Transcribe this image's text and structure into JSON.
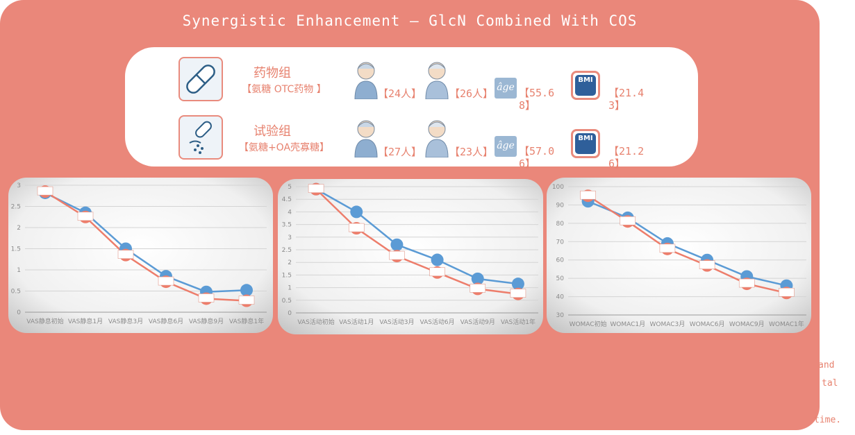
{
  "title": "Synergistic Enhancement – GlcN Combined With COS",
  "groups": [
    {
      "name": "药物组",
      "desc": "【氨糖 OTC药物 】",
      "male": "【24人】",
      "female": "【26人】",
      "age_icon": "âge",
      "age": "【55.68】",
      "bmi_icon": "BMI",
      "bmi": "【21.43】"
    },
    {
      "name": "试验组",
      "desc": "【氨糖+OA壳寡糖】",
      "male": "【27人】",
      "female": "【23人】",
      "age_icon": "âge",
      "age": "【57.06】",
      "bmi_icon": "BMI",
      "bmi": "【21.26】"
    }
  ],
  "chart_data": [
    {
      "type": "line",
      "categories": [
        "VAS静息初始",
        "VAS静息1月",
        "VAS静息3月",
        "VAS静息6月",
        "VAS静息9月",
        "VAS静息1年"
      ],
      "series": [
        {
          "color": "#5b9bd5",
          "values": [
            2.82,
            2.35,
            1.5,
            0.85,
            0.48,
            0.52
          ]
        },
        {
          "color": "#ed7d6b",
          "values": [
            2.85,
            2.25,
            1.35,
            0.72,
            0.32,
            0.27
          ]
        }
      ],
      "ylim": [
        0,
        3
      ],
      "yticks": [
        0,
        0.5,
        1,
        1.5,
        2,
        2.5,
        3
      ],
      "grid": true
    },
    {
      "type": "line",
      "categories": [
        "VAS活动初始",
        "VAS活动1月",
        "VAS活动3月",
        "VAS活动6月",
        "VAS活动9月",
        "VAS活动1年"
      ],
      "series": [
        {
          "color": "#5b9bd5",
          "values": [
            4.9,
            4.0,
            2.7,
            2.1,
            1.35,
            1.15
          ]
        },
        {
          "color": "#ed7d6b",
          "values": [
            4.9,
            3.35,
            2.25,
            1.6,
            0.95,
            0.75
          ]
        }
      ],
      "ylim": [
        0,
        5
      ],
      "yticks": [
        0,
        0.5,
        1,
        1.5,
        2,
        2.5,
        3,
        3.5,
        4,
        4.5,
        5
      ],
      "grid": true
    },
    {
      "type": "line",
      "categories": [
        "WOMAC初始",
        "WOMAC1月",
        "WOMAC3月",
        "WOMAC6月",
        "WOMAC9月",
        "WOMAC1年"
      ],
      "series": [
        {
          "color": "#5b9bd5",
          "values": [
            92,
            83,
            69,
            60,
            51,
            46
          ]
        },
        {
          "color": "#ed7d6b",
          "values": [
            95,
            81,
            66,
            57,
            47,
            42
          ]
        }
      ],
      "ylim": [
        30,
        100
      ],
      "yticks": [
        30,
        40,
        50,
        60,
        70,
        80,
        90,
        100
      ],
      "grid": true
    }
  ],
  "fragments": [
    "and",
    "tal",
    "time."
  ]
}
